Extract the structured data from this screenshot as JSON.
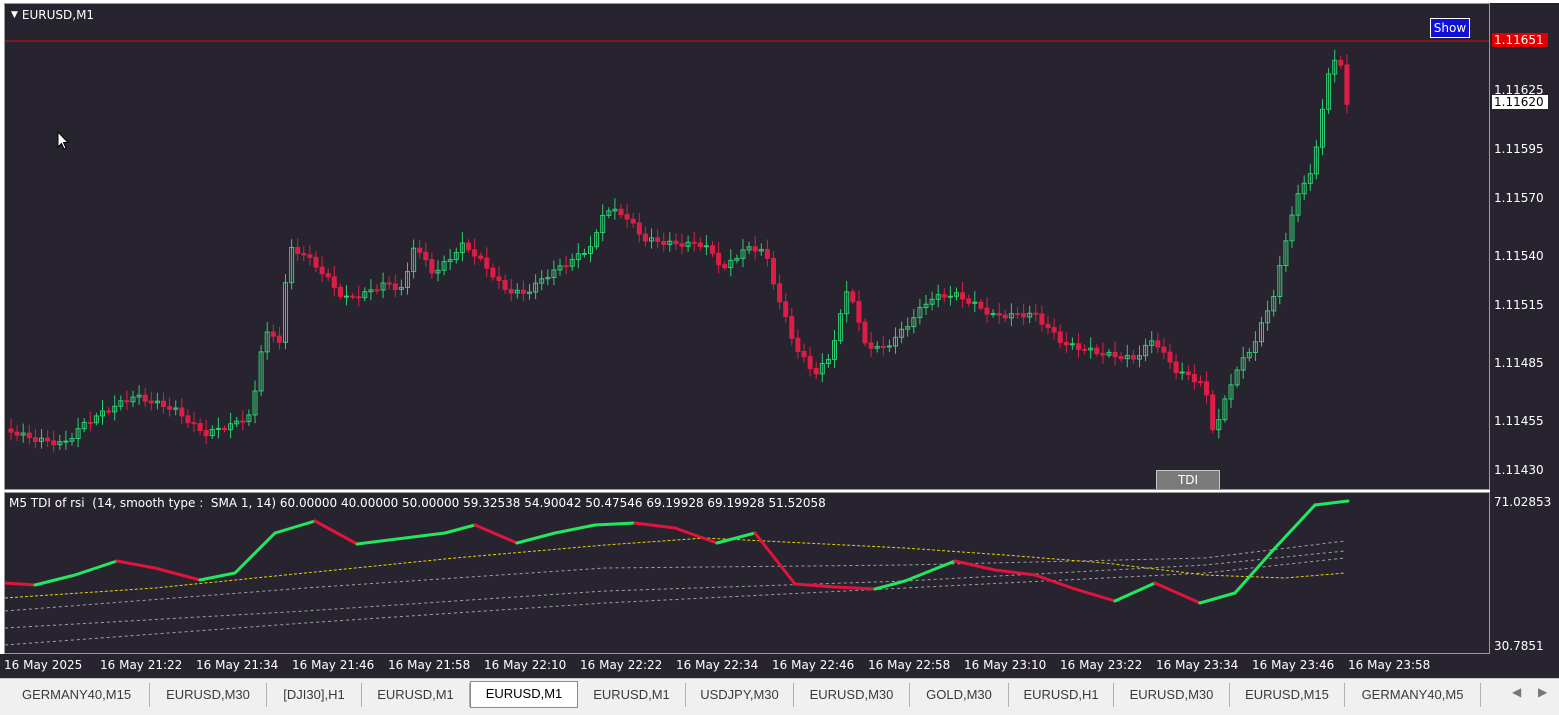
{
  "chart": {
    "title": "EURUSD,M1",
    "show_button": "Show",
    "tdi_button": "TDI",
    "colors": {
      "bg": "#28242f",
      "bull": "#2ecc71",
      "bear": "#dc1e46",
      "bid_line": "#c81414",
      "tdi_up": "#22e85f",
      "tdi_down": "#e0143c",
      "signal": "#e6d000",
      "band": "#a0a0a0"
    }
  },
  "price_scale": {
    "ticks": [
      "1.11625",
      "1.11595",
      "1.11570",
      "1.11540",
      "1.11515",
      "1.11485",
      "1.11455",
      "1.11430"
    ],
    "bid_price": "1.11651",
    "current_price": "1.11620"
  },
  "indicator": {
    "label": "M5 TDI of rsi  (14, smooth type :  SMA 1, 14) 60.00000 40.00000 50.00000 59.32538 54.90042 50.47546 69.19928 69.19928 51.52058",
    "scale_max": "71.02853",
    "scale_min": "30.7851"
  },
  "time_axis": [
    "16 May 2025",
    "16 May 21:22",
    "16 May 21:34",
    "16 May 21:46",
    "16 May 21:58",
    "16 May 22:10",
    "16 May 22:22",
    "16 May 22:34",
    "16 May 22:46",
    "16 May 22:58",
    "16 May 23:10",
    "16 May 23:22",
    "16 May 23:34",
    "16 May 23:46",
    "16 May 23:58"
  ],
  "tabs": [
    {
      "label": "GERMANY40,M15",
      "active": false
    },
    {
      "label": "EURUSD,M30",
      "active": false
    },
    {
      "label": "[DJI30],H1",
      "active": false
    },
    {
      "label": "EURUSD,M1",
      "active": false
    },
    {
      "label": "EURUSD,M1",
      "active": true
    },
    {
      "label": "EURUSD,M1",
      "active": false
    },
    {
      "label": "USDJPY,M30",
      "active": false
    },
    {
      "label": "EURUSD,M30",
      "active": false
    },
    {
      "label": "GOLD,M30",
      "active": false
    },
    {
      "label": "EURUSD,H1",
      "active": false
    },
    {
      "label": "EURUSD,M30",
      "active": false
    },
    {
      "label": "EURUSD,M15",
      "active": false
    },
    {
      "label": "GERMANY40,M5",
      "active": false
    }
  ],
  "tab_nav": {
    "left": "◀",
    "right": "▶"
  }
}
